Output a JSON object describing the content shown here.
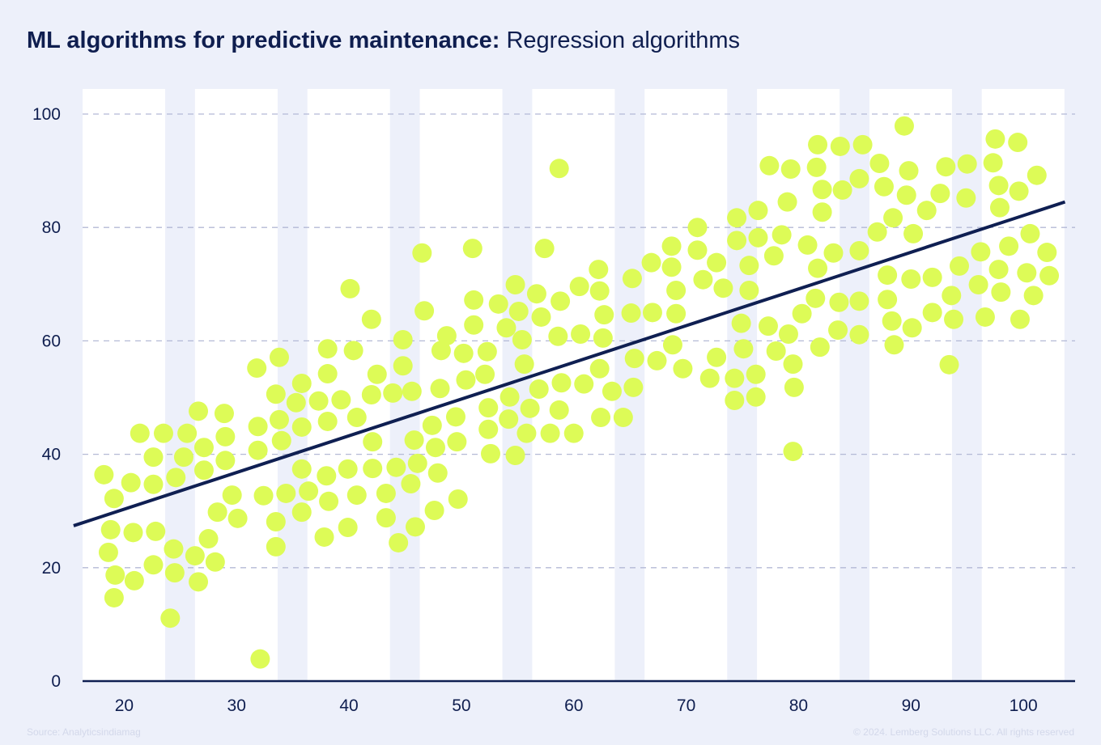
{
  "title": {
    "bold": "ML algorithms for predictive maintenance:",
    "regular": "Regression algorithms"
  },
  "footer": {
    "source": "Source: Analyticsindiamag",
    "copyright": "© 2024. Lemberg Solutions LLC. All rights reserved"
  },
  "colors": {
    "background": "#edf0fa",
    "band": "#ffffff",
    "point": "#ddfb57",
    "line": "#0f1f52",
    "grid": "#b4b9d6",
    "text": "#0f1e4f"
  },
  "chart_data": {
    "type": "scatter",
    "title": "ML algorithms for predictive maintenance: Regression algorithms",
    "xlabel": "",
    "ylabel": "",
    "xlim": [
      16.3,
      104.6
    ],
    "ylim": [
      0,
      100
    ],
    "xticks": [
      20,
      30,
      40,
      50,
      60,
      70,
      80,
      90,
      100
    ],
    "yticks": [
      0,
      20,
      40,
      60,
      80,
      100
    ],
    "grid": "horizontal dashed",
    "legend": "none",
    "regression_line": [
      [
        15.5,
        27.4
      ],
      [
        103.7,
        84.5
      ]
    ],
    "points": [
      [
        18.2,
        36.4
      ],
      [
        19.1,
        32.2
      ],
      [
        18.8,
        26.7
      ],
      [
        18.6,
        22.7
      ],
      [
        19.2,
        18.7
      ],
      [
        19.1,
        14.7
      ],
      [
        20.6,
        35.0
      ],
      [
        20.8,
        26.2
      ],
      [
        20.9,
        17.7
      ],
      [
        21.4,
        43.7
      ],
      [
        22.6,
        39.5
      ],
      [
        22.6,
        34.7
      ],
      [
        22.8,
        26.4
      ],
      [
        22.6,
        20.5
      ],
      [
        23.5,
        43.7
      ],
      [
        24.4,
        23.3
      ],
      [
        24.5,
        19.1
      ],
      [
        24.1,
        11.1
      ],
      [
        24.6,
        35.9
      ],
      [
        25.3,
        39.5
      ],
      [
        25.6,
        43.7
      ],
      [
        26.3,
        22.1
      ],
      [
        26.6,
        17.5
      ],
      [
        26.6,
        47.6
      ],
      [
        27.1,
        41.2
      ],
      [
        27.1,
        37.2
      ],
      [
        27.5,
        25.1
      ],
      [
        28.1,
        21.0
      ],
      [
        28.3,
        29.8
      ],
      [
        28.9,
        47.2
      ],
      [
        29.0,
        43.1
      ],
      [
        29.0,
        38.9
      ],
      [
        29.6,
        32.8
      ],
      [
        30.1,
        28.7
      ],
      [
        31.8,
        55.2
      ],
      [
        31.9,
        44.9
      ],
      [
        31.9,
        40.7
      ],
      [
        32.4,
        32.7
      ],
      [
        32.1,
        3.9
      ],
      [
        33.5,
        50.6
      ],
      [
        33.8,
        57.1
      ],
      [
        33.8,
        46.1
      ],
      [
        34.0,
        42.4
      ],
      [
        33.5,
        28.1
      ],
      [
        33.5,
        23.7
      ],
      [
        34.4,
        33.1
      ],
      [
        35.3,
        49.1
      ],
      [
        35.8,
        52.5
      ],
      [
        35.8,
        44.8
      ],
      [
        35.8,
        37.4
      ],
      [
        35.8,
        29.8
      ],
      [
        36.4,
        33.5
      ],
      [
        37.3,
        49.4
      ],
      [
        37.8,
        25.4
      ],
      [
        38.1,
        58.6
      ],
      [
        38.1,
        54.2
      ],
      [
        38.1,
        45.8
      ],
      [
        38.0,
        36.2
      ],
      [
        38.2,
        31.7
      ],
      [
        39.3,
        49.6
      ],
      [
        39.9,
        37.4
      ],
      [
        39.9,
        27.1
      ],
      [
        40.1,
        69.2
      ],
      [
        40.4,
        58.3
      ],
      [
        40.7,
        46.5
      ],
      [
        40.7,
        32.8
      ],
      [
        42.0,
        63.8
      ],
      [
        42.0,
        50.5
      ],
      [
        42.1,
        42.2
      ],
      [
        42.1,
        37.5
      ],
      [
        42.5,
        54.1
      ],
      [
        43.3,
        33.1
      ],
      [
        43.3,
        28.8
      ],
      [
        43.9,
        50.8
      ],
      [
        44.2,
        37.7
      ],
      [
        44.4,
        24.4
      ],
      [
        44.8,
        60.2
      ],
      [
        44.8,
        55.6
      ],
      [
        45.8,
        42.5
      ],
      [
        45.5,
        34.8
      ],
      [
        45.6,
        51.1
      ],
      [
        45.9,
        27.2
      ],
      [
        46.1,
        38.4
      ],
      [
        46.5,
        75.5
      ],
      [
        46.7,
        65.3
      ],
      [
        47.4,
        45.1
      ],
      [
        47.6,
        30.1
      ],
      [
        47.7,
        41.2
      ],
      [
        48.1,
        51.6
      ],
      [
        47.9,
        36.7
      ],
      [
        48.2,
        58.3
      ],
      [
        48.7,
        60.9
      ],
      [
        49.6,
        42.2
      ],
      [
        49.5,
        46.6
      ],
      [
        49.7,
        32.1
      ],
      [
        50.2,
        57.8
      ],
      [
        50.4,
        53.1
      ],
      [
        51.0,
        76.3
      ],
      [
        51.1,
        62.8
      ],
      [
        51.1,
        67.2
      ],
      [
        52.3,
        58.1
      ],
      [
        52.1,
        54.1
      ],
      [
        52.4,
        48.2
      ],
      [
        52.4,
        44.4
      ],
      [
        52.6,
        40.1
      ],
      [
        53.3,
        66.5
      ],
      [
        54.0,
        62.3
      ],
      [
        54.2,
        46.2
      ],
      [
        54.3,
        50.1
      ],
      [
        54.8,
        69.9
      ],
      [
        54.8,
        39.8
      ],
      [
        55.1,
        65.2
      ],
      [
        55.4,
        60.2
      ],
      [
        55.6,
        55.9
      ],
      [
        55.8,
        43.7
      ],
      [
        56.1,
        48.1
      ],
      [
        56.7,
        68.3
      ],
      [
        56.9,
        51.5
      ],
      [
        57.1,
        64.2
      ],
      [
        57.4,
        76.3
      ],
      [
        57.9,
        43.7
      ],
      [
        58.7,
        90.4
      ],
      [
        58.8,
        67.0
      ],
      [
        58.6,
        60.8
      ],
      [
        58.9,
        52.6
      ],
      [
        58.7,
        47.8
      ],
      [
        60.0,
        43.7
      ],
      [
        60.5,
        69.6
      ],
      [
        60.6,
        61.2
      ],
      [
        60.9,
        52.4
      ],
      [
        62.2,
        72.6
      ],
      [
        62.3,
        68.8
      ],
      [
        62.7,
        64.6
      ],
      [
        62.6,
        60.5
      ],
      [
        62.3,
        55.1
      ],
      [
        62.4,
        46.5
      ],
      [
        63.4,
        51.1
      ],
      [
        64.4,
        46.5
      ],
      [
        65.2,
        71.0
      ],
      [
        65.1,
        64.9
      ],
      [
        65.4,
        56.9
      ],
      [
        65.3,
        51.8
      ],
      [
        66.9,
        73.8
      ],
      [
        67.0,
        65.0
      ],
      [
        67.4,
        56.5
      ],
      [
        68.7,
        76.7
      ],
      [
        68.7,
        73.0
      ],
      [
        69.1,
        68.9
      ],
      [
        69.1,
        64.8
      ],
      [
        68.8,
        59.3
      ],
      [
        69.7,
        55.1
      ],
      [
        71.0,
        80.0
      ],
      [
        71.0,
        76.0
      ],
      [
        71.5,
        70.8
      ],
      [
        72.1,
        53.4
      ],
      [
        72.7,
        73.8
      ],
      [
        72.7,
        57.1
      ],
      [
        73.3,
        69.3
      ],
      [
        74.3,
        49.5
      ],
      [
        74.3,
        53.4
      ],
      [
        74.5,
        81.7
      ],
      [
        74.5,
        77.7
      ],
      [
        74.9,
        63.1
      ],
      [
        75.1,
        58.6
      ],
      [
        75.6,
        73.3
      ],
      [
        75.6,
        68.9
      ],
      [
        76.2,
        50.1
      ],
      [
        76.2,
        54.1
      ],
      [
        76.4,
        83.0
      ],
      [
        76.4,
        78.2
      ],
      [
        77.4,
        90.9
      ],
      [
        77.3,
        62.6
      ],
      [
        77.8,
        75.0
      ],
      [
        78.0,
        58.2
      ],
      [
        78.5,
        78.7
      ],
      [
        79.0,
        84.5
      ],
      [
        79.3,
        90.3
      ],
      [
        79.1,
        61.2
      ],
      [
        79.5,
        55.9
      ],
      [
        79.6,
        51.8
      ],
      [
        79.5,
        40.5
      ],
      [
        80.3,
        64.8
      ],
      [
        80.8,
        76.9
      ],
      [
        81.7,
        72.8
      ],
      [
        81.5,
        67.5
      ],
      [
        81.9,
        58.9
      ],
      [
        81.7,
        94.6
      ],
      [
        81.6,
        90.6
      ],
      [
        82.1,
        86.7
      ],
      [
        82.1,
        82.7
      ],
      [
        83.1,
        75.5
      ],
      [
        83.5,
        61.9
      ],
      [
        83.6,
        66.8
      ],
      [
        83.9,
        86.6
      ],
      [
        83.7,
        94.3
      ],
      [
        85.7,
        94.6
      ],
      [
        85.4,
        88.6
      ],
      [
        85.4,
        75.9
      ],
      [
        85.4,
        67.0
      ],
      [
        85.4,
        61.1
      ],
      [
        87.0,
        79.2
      ],
      [
        87.2,
        91.3
      ],
      [
        87.6,
        87.2
      ],
      [
        87.9,
        71.6
      ],
      [
        87.9,
        67.3
      ],
      [
        88.3,
        63.5
      ],
      [
        88.5,
        59.3
      ],
      [
        88.4,
        81.7
      ],
      [
        89.4,
        97.9
      ],
      [
        89.8,
        90.0
      ],
      [
        89.6,
        85.7
      ],
      [
        90.2,
        78.9
      ],
      [
        90.0,
        70.9
      ],
      [
        90.1,
        62.3
      ],
      [
        91.4,
        83.0
      ],
      [
        91.9,
        71.2
      ],
      [
        91.9,
        65.0
      ],
      [
        92.6,
        86.0
      ],
      [
        93.1,
        90.7
      ],
      [
        93.4,
        55.8
      ],
      [
        93.6,
        68.0
      ],
      [
        93.8,
        63.8
      ],
      [
        94.3,
        73.2
      ],
      [
        94.9,
        85.2
      ],
      [
        95.0,
        91.2
      ],
      [
        96.0,
        69.9
      ],
      [
        96.2,
        75.7
      ],
      [
        96.6,
        64.2
      ],
      [
        97.3,
        91.4
      ],
      [
        97.5,
        95.6
      ],
      [
        97.8,
        87.4
      ],
      [
        97.9,
        83.5
      ],
      [
        97.8,
        72.6
      ],
      [
        98.0,
        68.6
      ],
      [
        98.7,
        76.7
      ],
      [
        99.5,
        95.0
      ],
      [
        99.6,
        86.4
      ],
      [
        99.7,
        63.8
      ],
      [
        100.3,
        72.0
      ],
      [
        100.6,
        78.9
      ],
      [
        100.9,
        68.0
      ],
      [
        101.2,
        89.2
      ],
      [
        102.1,
        75.6
      ],
      [
        102.3,
        71.5
      ]
    ]
  }
}
